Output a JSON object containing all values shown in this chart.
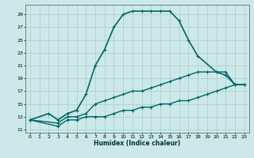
{
  "title": "",
  "xlabel": "Humidex (Indice chaleur)",
  "bg_color": "#cce8e8",
  "grid_color": "#aacccc",
  "line_color": "#006666",
  "xlim": [
    -0.5,
    23.5
  ],
  "ylim": [
    10.5,
    30.5
  ],
  "yticks": [
    11,
    13,
    15,
    17,
    19,
    21,
    23,
    25,
    27,
    29
  ],
  "xticks": [
    0,
    1,
    2,
    3,
    4,
    5,
    6,
    7,
    8,
    9,
    10,
    11,
    12,
    13,
    14,
    15,
    16,
    17,
    18,
    19,
    20,
    21,
    22,
    23
  ],
  "series": [
    {
      "x": [
        0,
        2,
        3,
        4,
        5,
        6,
        7,
        8,
        9,
        10,
        11,
        12,
        13,
        14,
        15,
        16,
        17,
        18,
        20,
        21,
        22,
        23
      ],
      "y": [
        12.5,
        13.5,
        12.5,
        13.5,
        14,
        16.5,
        21,
        23.5,
        27,
        29,
        29.5,
        29.5,
        29.5,
        29.5,
        29.5,
        28,
        25,
        22.5,
        20,
        19.5,
        18,
        18
      ],
      "lw": 1.2
    },
    {
      "x": [
        0,
        3,
        4,
        5,
        6,
        7,
        8,
        9,
        10,
        11,
        12,
        13,
        14,
        15,
        16,
        17,
        18,
        19,
        20,
        21,
        22,
        23
      ],
      "y": [
        12.5,
        12,
        13,
        13,
        13.5,
        15,
        15.5,
        16,
        16.5,
        17,
        17,
        17.5,
        18,
        18.5,
        19,
        19.5,
        20,
        20,
        20,
        20,
        18,
        18
      ],
      "lw": 1.0
    },
    {
      "x": [
        0,
        3,
        4,
        5,
        6,
        7,
        8,
        9,
        10,
        11,
        12,
        13,
        14,
        15,
        16,
        17,
        18,
        19,
        20,
        21,
        22,
        23
      ],
      "y": [
        12.5,
        11.5,
        12.5,
        12.5,
        13,
        13,
        13,
        13.5,
        14,
        14,
        14.5,
        14.5,
        15,
        15,
        15.5,
        15.5,
        16,
        16.5,
        17,
        17.5,
        18,
        18
      ],
      "lw": 1.0
    }
  ]
}
